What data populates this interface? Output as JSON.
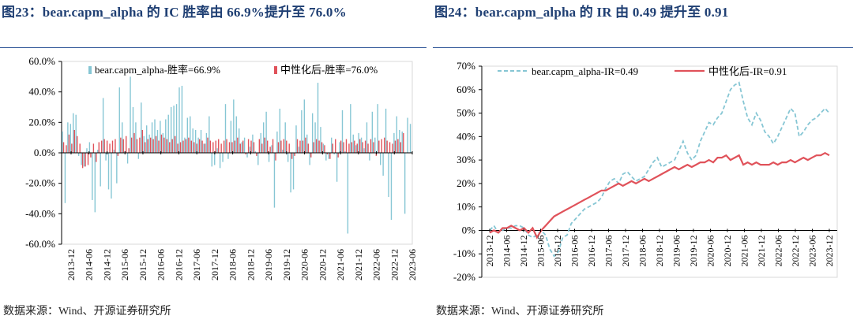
{
  "left_panel": {
    "title": "图23：bear.capm_alpha 的 IC 胜率由 66.9%提升至 76.0%",
    "source": "数据来源：Wind、开源证券研究所"
  },
  "right_panel": {
    "title": "图24：bear.capm_alpha 的 IR 由 0.49 提升至 0.91",
    "source": "数据来源：Wind、开源证券研究所"
  },
  "colors": {
    "title": "#1f3f73",
    "teal": "#86c6d4",
    "red": "#e0525a",
    "rule": "#2f5597"
  },
  "chart_data": [
    {
      "type": "bar",
      "title": "",
      "ylim": [
        -60,
        60
      ],
      "yticks": [
        "60.0%",
        "40.0%",
        "20.0%",
        "0.0%",
        "-20.0%",
        "-40.0%",
        "-60.0%"
      ],
      "ytick_values": [
        60,
        40,
        20,
        0,
        -20,
        -40,
        -60
      ],
      "xtick_labels": [
        "2013-12",
        "2014-06",
        "2014-12",
        "2015-06",
        "2015-12",
        "2016-06",
        "2016-12",
        "2017-06",
        "2017-12",
        "2018-06",
        "2018-12",
        "2019-06",
        "2019-12",
        "2020-06",
        "2020-12",
        "2021-06",
        "2021-12",
        "2022-06",
        "2022-12",
        "2023-06"
      ],
      "legend": "top-left",
      "series": [
        {
          "name": "bear.capm_alpha-胜率=66.9%",
          "color": "#86c6d4",
          "values": [
            14,
            -33,
            20,
            19,
            26,
            25,
            -2,
            -8,
            -9,
            3,
            7,
            -31,
            -39,
            2,
            -22,
            36,
            -5,
            -24,
            -30,
            2,
            -20,
            43,
            20,
            1,
            -7,
            50,
            30,
            20,
            -4,
            33,
            11,
            18,
            12,
            20,
            22,
            15,
            21,
            13,
            22,
            25,
            30,
            31,
            32,
            43,
            44,
            10,
            23,
            24,
            16,
            15,
            10,
            15,
            6,
            13,
            24,
            -9,
            -8,
            3,
            -10,
            -6,
            32,
            -4,
            21,
            35,
            24,
            16,
            7,
            10,
            -3,
            4,
            12,
            1,
            -8,
            13,
            20,
            27,
            -6,
            5,
            -36,
            14,
            29,
            2,
            20,
            -6,
            -26,
            -24,
            18,
            4,
            28,
            35,
            12,
            -8,
            26,
            20,
            46,
            17,
            6,
            -5,
            -4,
            10,
            -1,
            -19,
            7,
            28,
            1,
            -53,
            32,
            12,
            5,
            13,
            10,
            3,
            20,
            -5,
            27,
            10,
            32,
            -8,
            -15,
            29,
            -29,
            -44,
            13,
            24,
            15,
            14,
            -40,
            23,
            19
          ]
        },
        {
          "name": "中性化后-胜率=76.0%",
          "color": "#e0525a",
          "values": [
            7,
            5,
            12,
            6,
            15,
            11,
            6,
            -10,
            -9,
            -8,
            -3,
            6,
            -6,
            7,
            8,
            9,
            8,
            6,
            8,
            9,
            -2,
            10,
            9,
            11,
            3,
            10,
            13,
            9,
            10,
            15,
            7,
            9,
            10,
            9,
            11,
            8,
            12,
            10,
            9,
            7,
            9,
            11,
            6,
            7,
            8,
            9,
            10,
            8,
            7,
            6,
            9,
            8,
            6,
            10,
            8,
            7,
            8,
            9,
            6,
            8,
            9,
            7,
            7,
            8,
            10,
            6,
            8,
            -1,
            9,
            8,
            7,
            -2,
            9,
            6,
            10,
            8,
            4,
            9,
            -5,
            7,
            8,
            9,
            8,
            6,
            -4,
            -2,
            9,
            8,
            8,
            10,
            6,
            -3,
            7,
            9,
            8,
            7,
            5,
            -1,
            -4,
            6,
            9,
            -3,
            8,
            7,
            9,
            6,
            7,
            8,
            6,
            9,
            7,
            8,
            6,
            9,
            7,
            -2,
            8,
            9,
            10,
            8,
            7,
            6,
            8,
            9,
            7,
            13
          ]
        }
      ]
    },
    {
      "type": "line",
      "title": "",
      "ylim": [
        -20,
        70
      ],
      "yticks": [
        "70%",
        "60%",
        "50%",
        "40%",
        "30%",
        "20%",
        "10%",
        "0%",
        "-10%",
        "-20%"
      ],
      "ytick_values": [
        70,
        60,
        50,
        40,
        30,
        20,
        10,
        0,
        -10,
        -20
      ],
      "xtick_labels": [
        "2013-12",
        "2014-06",
        "2014-12",
        "2015-06",
        "2015-12",
        "2016-06",
        "2016-12",
        "2017-06",
        "2017-12",
        "2018-06",
        "2018-12",
        "2019-06",
        "2019-12",
        "2020-06",
        "2020-12",
        "2021-06",
        "2021-12",
        "2022-06",
        "2022-12",
        "2023-06",
        "2023-12"
      ],
      "legend": "top-left",
      "series": [
        {
          "name": "bear.capm_alpha-IR=0.49",
          "style": "dashed",
          "color": "#86c6d4",
          "values": [
            0,
            2,
            -1,
            0,
            1,
            1,
            2,
            2,
            1,
            -2,
            -3,
            -2,
            0,
            -2,
            -8,
            -11,
            -9,
            -3,
            -2,
            3,
            5,
            7,
            9,
            10,
            11,
            12,
            14,
            18,
            21,
            22,
            20,
            24,
            25,
            23,
            21,
            22,
            23,
            26,
            29,
            31,
            27,
            28,
            29,
            30,
            34,
            38,
            33,
            30,
            32,
            38,
            42,
            46,
            45,
            48,
            50,
            55,
            60,
            62,
            63,
            55,
            48,
            45,
            50,
            47,
            42,
            40,
            37,
            40,
            44,
            48,
            52,
            50,
            40,
            42,
            45,
            47,
            48,
            50,
            52,
            50
          ]
        },
        {
          "name": "中性化后-IR=0.91",
          "style": "solid",
          "color": "#e0525a",
          "values": [
            -1,
            0,
            -1,
            1,
            1,
            2,
            1,
            0,
            1,
            -1,
            1,
            -3,
            0,
            2,
            4,
            6,
            7,
            8,
            9,
            10,
            11,
            12,
            13,
            14,
            15,
            16,
            17,
            17,
            18,
            19,
            20,
            19,
            20,
            21,
            20,
            21,
            22,
            21,
            22,
            23,
            24,
            25,
            26,
            27,
            26,
            27,
            28,
            27,
            28,
            29,
            29,
            30,
            29,
            31,
            31,
            32,
            30,
            31,
            32,
            28,
            29,
            28,
            29,
            28,
            28,
            28,
            29,
            28,
            29,
            29,
            30,
            29,
            30,
            31,
            30,
            31,
            32,
            32,
            33,
            32
          ]
        }
      ]
    }
  ]
}
